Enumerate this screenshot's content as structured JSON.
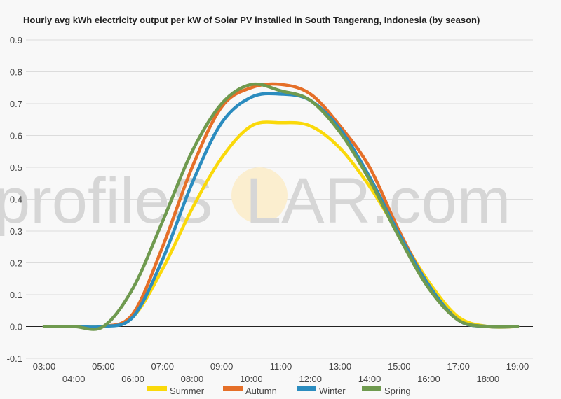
{
  "watermark": {
    "part1": "profileS",
    "part2": "LAR.com",
    "sun_color": "#fbeecf"
  },
  "chart_data": {
    "type": "line",
    "title": "Hourly avg kWh electricity output per kW of Solar PV installed in South Tangerang, Indonesia (by season)",
    "xlabel": "",
    "ylabel": "",
    "x_ticks": [
      "03:00",
      "04:00",
      "05:00",
      "06:00",
      "07:00",
      "08:00",
      "09:00",
      "10:00",
      "11:00",
      "12:00",
      "13:00",
      "14:00",
      "15:00",
      "16:00",
      "17:00",
      "18:00",
      "19:00"
    ],
    "ylim": [
      -0.1,
      0.9
    ],
    "y_ticks": [
      "-0.1",
      "0.0",
      "0.1",
      "0.2",
      "0.3",
      "0.4",
      "0.5",
      "0.6",
      "0.7",
      "0.8",
      "0.9"
    ],
    "grid": true,
    "legend_position": "bottom",
    "series": [
      {
        "name": "Summer",
        "color": "#fad90a",
        "values": [
          0.0,
          0.0,
          0.0,
          0.03,
          0.18,
          0.37,
          0.53,
          0.63,
          0.64,
          0.63,
          0.56,
          0.44,
          0.29,
          0.14,
          0.03,
          0.0,
          0.0
        ]
      },
      {
        "name": "Autumn",
        "color": "#e56f28",
        "values": [
          0.0,
          0.0,
          0.0,
          0.04,
          0.25,
          0.5,
          0.69,
          0.75,
          0.76,
          0.73,
          0.63,
          0.5,
          0.3,
          0.13,
          0.02,
          0.0,
          0.0
        ]
      },
      {
        "name": "Winter",
        "color": "#2b8cbf",
        "values": [
          0.0,
          0.0,
          0.0,
          0.03,
          0.21,
          0.45,
          0.64,
          0.72,
          0.73,
          0.71,
          0.62,
          0.47,
          0.29,
          0.13,
          0.02,
          0.0,
          0.0
        ]
      },
      {
        "name": "Spring",
        "color": "#6f9a4f",
        "values": [
          0.0,
          0.0,
          0.0,
          0.12,
          0.33,
          0.55,
          0.7,
          0.76,
          0.74,
          0.71,
          0.61,
          0.46,
          0.28,
          0.12,
          0.02,
          0.0,
          0.0
        ]
      }
    ]
  }
}
